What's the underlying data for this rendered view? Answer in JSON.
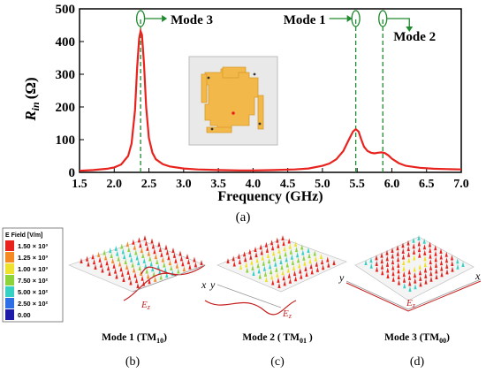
{
  "chart_data": {
    "type": "line",
    "xlabel": "Frequency (GHz)",
    "ylabel_main": "R",
    "ylabel_sub": "in",
    "ylabel_unit": "(Ω)",
    "xlim": [
      1.5,
      7.0
    ],
    "ylim": [
      0,
      500
    ],
    "xticks": [
      "1.5",
      "2.0",
      "2.5",
      "3.0",
      "3.5",
      "4.0",
      "4.5",
      "5.0",
      "5.5",
      "6.0",
      "6.5",
      "7.0"
    ],
    "yticks": [
      "0",
      "100",
      "200",
      "300",
      "400",
      "500"
    ],
    "series_color": "#e8231e",
    "marker_color": "#1f8a2f",
    "x": [
      1.5,
      1.7,
      1.9,
      2.0,
      2.1,
      2.2,
      2.25,
      2.3,
      2.33,
      2.36,
      2.38,
      2.4,
      2.43,
      2.46,
      2.5,
      2.55,
      2.6,
      2.7,
      2.8,
      3.0,
      3.2,
      3.5,
      3.8,
      4.0,
      4.3,
      4.6,
      4.8,
      5.0,
      5.1,
      5.2,
      5.3,
      5.38,
      5.44,
      5.48,
      5.52,
      5.56,
      5.6,
      5.65,
      5.7,
      5.75,
      5.8,
      5.85,
      5.9,
      5.95,
      6.0,
      6.1,
      6.2,
      6.4,
      6.6,
      6.8,
      7.0
    ],
    "y": [
      5,
      7,
      11,
      15,
      24,
      50,
      88,
      190,
      320,
      410,
      432,
      420,
      330,
      200,
      105,
      60,
      40,
      25,
      18,
      12,
      9,
      7,
      6,
      6,
      7,
      9,
      12,
      20,
      27,
      40,
      65,
      100,
      125,
      132,
      125,
      100,
      78,
      65,
      60,
      58,
      60,
      61,
      59,
      52,
      42,
      28,
      20,
      14,
      11,
      10,
      9
    ],
    "annotations": [
      {
        "label": "Mode 3",
        "x": 2.38
      },
      {
        "label": "Mode 1",
        "x": 5.48
      },
      {
        "label": "Mode 2",
        "x": 5.87
      }
    ]
  },
  "caption_a": "(a)",
  "caption_b": "(b)",
  "caption_c": "(c)",
  "caption_d": "(d)",
  "legend": {
    "title": "E Field [V/m]",
    "entries": [
      {
        "label": "1.50 × 10³",
        "color": "#e8231e"
      },
      {
        "label": "1.25 × 10³",
        "color": "#f58a22"
      },
      {
        "label": "1.00 × 10³",
        "color": "#eee22e"
      },
      {
        "label": "7.50 × 10²",
        "color": "#8cd43a"
      },
      {
        "label": "5.00 × 10²",
        "color": "#36d1c4"
      },
      {
        "label": "2.50 × 10²",
        "color": "#2f6fe6"
      },
      {
        "label": "0.00",
        "color": "#1d1aa8"
      }
    ]
  },
  "mode_labels": [
    {
      "name": "Mode 1 (TM",
      "sub": "10",
      "end": ")"
    },
    {
      "name": "Mode 2 ( TM",
      "sub": "01",
      "end": " )"
    },
    {
      "name": "Mode 3 (TM",
      "sub": "00",
      "end": ")"
    }
  ],
  "field_label": "E",
  "field_sub": "z",
  "axis_x": "x",
  "axis_y": "y"
}
